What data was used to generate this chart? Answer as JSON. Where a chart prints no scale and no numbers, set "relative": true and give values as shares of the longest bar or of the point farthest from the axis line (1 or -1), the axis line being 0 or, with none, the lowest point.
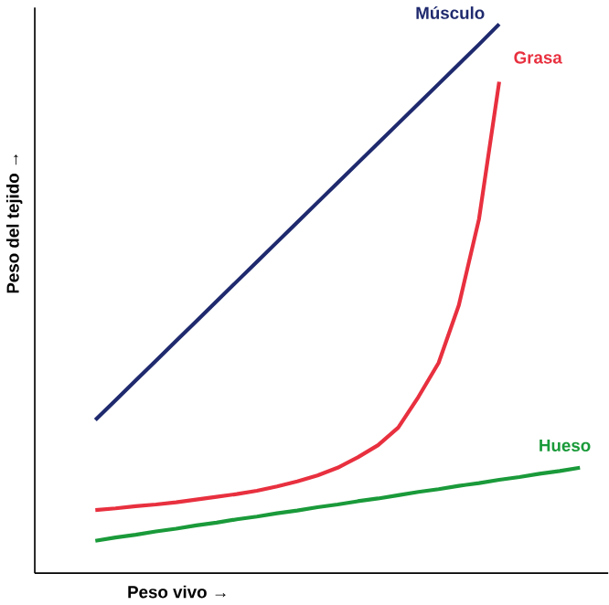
{
  "chart_data": {
    "type": "line",
    "relative": true,
    "xlabel": "Peso vivo →",
    "ylabel": "Peso del tejido →",
    "categories": [
      null,
      null,
      null,
      null,
      null,
      null,
      null,
      null,
      null,
      null,
      null,
      null,
      null,
      null,
      null,
      null,
      null,
      null,
      null,
      null,
      null,
      null,
      null,
      null,
      null
    ],
    "series": [
      {
        "name": "Músculo",
        "color": "#1f2a6e",
        "values": [
          0.279,
          0.315,
          0.351,
          0.387,
          0.423,
          0.459,
          0.495,
          0.531,
          0.567,
          0.603,
          0.639,
          0.675,
          0.711,
          0.747,
          0.783,
          0.819,
          0.855,
          0.891,
          0.927,
          0.963,
          1.0,
          null,
          null,
          null,
          null
        ]
      },
      {
        "name": "Grasa",
        "color": "#e8303f",
        "values": [
          0.115,
          0.118,
          0.122,
          0.125,
          0.129,
          0.134,
          0.139,
          0.144,
          0.15,
          0.158,
          0.167,
          0.178,
          0.192,
          0.211,
          0.233,
          0.265,
          0.321,
          0.383,
          0.488,
          0.645,
          0.895,
          null,
          null,
          null,
          null
        ]
      },
      {
        "name": "Hueso",
        "color": "#1a9a3a",
        "values": [
          0.059,
          0.065,
          0.07,
          0.076,
          0.081,
          0.087,
          0.092,
          0.098,
          0.103,
          0.109,
          0.114,
          0.12,
          0.125,
          0.131,
          0.136,
          0.142,
          0.148,
          0.153,
          0.159,
          0.164,
          0.17,
          0.175,
          0.181,
          0.186,
          0.192
        ]
      }
    ],
    "marker": "none",
    "line_style": "solid"
  }
}
